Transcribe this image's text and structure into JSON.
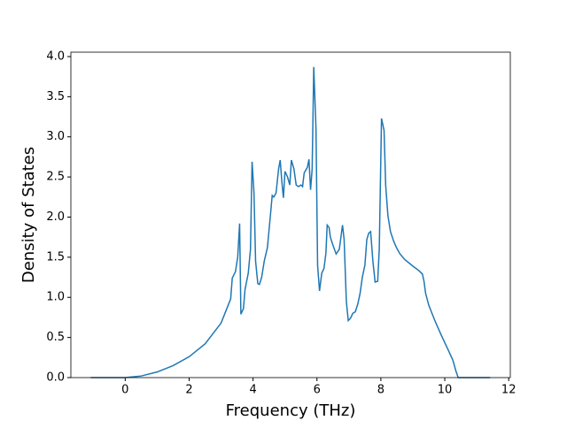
{
  "chart_data": {
    "type": "line",
    "xlabel": "Frequency (THz)",
    "ylabel": "Density of States",
    "x": [
      -1.08,
      0,
      0.5,
      1,
      1.5,
      2,
      2.5,
      3,
      3.3,
      3.35,
      3.45,
      3.52,
      3.58,
      3.62,
      3.7,
      3.75,
      3.85,
      3.92,
      3.97,
      4.03,
      4.08,
      4.15,
      4.2,
      4.27,
      4.35,
      4.45,
      4.55,
      4.6,
      4.65,
      4.72,
      4.8,
      4.85,
      4.9,
      4.95,
      5.0,
      5.08,
      5.15,
      5.2,
      5.28,
      5.35,
      5.42,
      5.5,
      5.55,
      5.6,
      5.7,
      5.75,
      5.8,
      5.85,
      5.9,
      5.97,
      6.02,
      6.08,
      6.15,
      6.22,
      6.28,
      6.32,
      6.38,
      6.42,
      6.5,
      6.6,
      6.7,
      6.8,
      6.85,
      6.92,
      6.98,
      7.05,
      7.12,
      7.2,
      7.28,
      7.35,
      7.42,
      7.5,
      7.56,
      7.62,
      7.68,
      7.75,
      7.82,
      7.9,
      7.95,
      8.02,
      8.1,
      8.15,
      8.22,
      8.3,
      8.4,
      8.5,
      8.6,
      8.75,
      9.0,
      9.2,
      9.3,
      9.35,
      9.4,
      9.5,
      9.7,
      9.9,
      10.1,
      10.25,
      10.35,
      10.42,
      11.42
    ],
    "series": [
      {
        "color": "#1f77b4",
        "values": [
          0,
          0,
          0.02,
          0.07,
          0.15,
          0.26,
          0.42,
          0.68,
          0.98,
          1.24,
          1.32,
          1.5,
          1.92,
          0.79,
          0.86,
          1.1,
          1.3,
          1.6,
          2.69,
          2.3,
          1.45,
          1.17,
          1.16,
          1.25,
          1.45,
          1.62,
          2.05,
          2.27,
          2.25,
          2.3,
          2.6,
          2.71,
          2.45,
          2.24,
          2.57,
          2.5,
          2.4,
          2.71,
          2.6,
          2.4,
          2.38,
          2.4,
          2.38,
          2.55,
          2.62,
          2.72,
          2.34,
          2.6,
          3.87,
          3.1,
          1.4,
          1.08,
          1.3,
          1.36,
          1.55,
          1.9,
          1.87,
          1.75,
          1.65,
          1.54,
          1.6,
          1.9,
          1.72,
          0.95,
          0.71,
          0.74,
          0.8,
          0.82,
          0.92,
          1.05,
          1.25,
          1.4,
          1.72,
          1.8,
          1.82,
          1.45,
          1.19,
          1.2,
          1.6,
          3.23,
          3.08,
          2.4,
          2.02,
          1.82,
          1.7,
          1.61,
          1.54,
          1.47,
          1.39,
          1.33,
          1.29,
          1.2,
          1.05,
          0.9,
          0.7,
          0.52,
          0.35,
          0.22,
          0.08,
          0,
          0
        ]
      }
    ],
    "xlim": [
      -1.7,
      12.05
    ],
    "xticks": [
      0,
      2,
      4,
      6,
      8,
      10,
      12
    ],
    "ylim": [
      0,
      4.055
    ],
    "yticks": [
      {
        "value": 0,
        "label": "0.0"
      },
      {
        "value": 0.5,
        "label": "0.5"
      },
      {
        "value": 1,
        "label": "1.0"
      },
      {
        "value": 1.5,
        "label": "1.5"
      },
      {
        "value": 2,
        "label": "2.0"
      },
      {
        "value": 2.5,
        "label": "2.5"
      },
      {
        "value": 3,
        "label": "3.0"
      },
      {
        "value": 3.5,
        "label": "3.5"
      },
      {
        "value": 4,
        "label": "4.0"
      }
    ]
  }
}
